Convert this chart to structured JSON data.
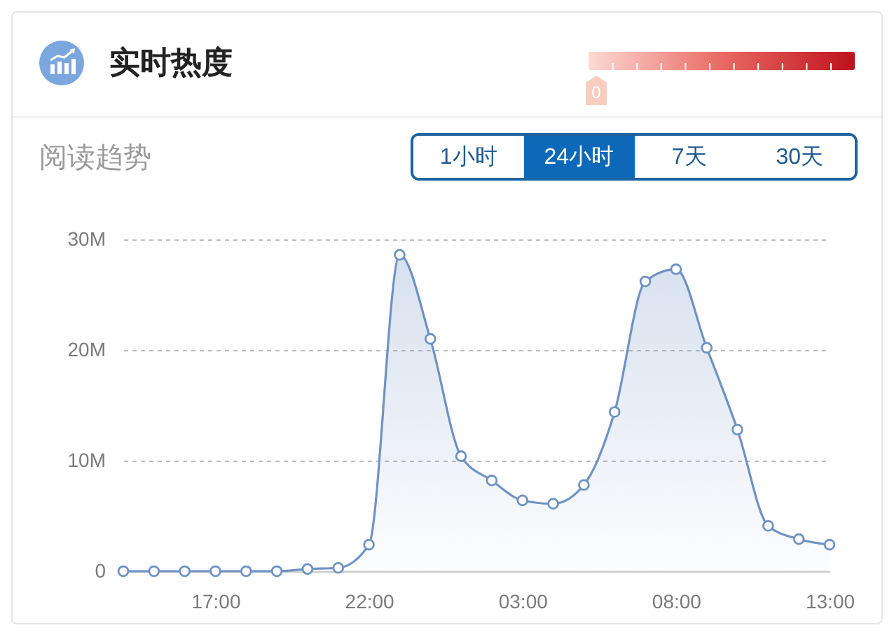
{
  "chart_data": [
    {
      "type": "other",
      "title": "实时热度",
      "annotations": [
        "0"
      ]
    },
    {
      "type": "area",
      "title": "阅读趋势",
      "annotations": [
        "1小时",
        "24小时",
        "7天",
        "30天"
      ],
      "categories": [
        null,
        null,
        null,
        "17:00",
        null,
        null,
        null,
        null,
        "22:00",
        null,
        null,
        null,
        null,
        "03:00",
        null,
        null,
        null,
        null,
        "08:00",
        null,
        null,
        null,
        null,
        "13:00"
      ],
      "series": [
        {
          "color": "#6f92c4",
          "values": [
            0,
            0,
            0,
            0,
            0,
            0,
            0.2,
            0.3,
            2.4,
            28.6,
            21.0,
            10.4,
            8.2,
            6.4,
            6.1,
            7.8,
            14.4,
            26.2,
            27.3,
            20.2,
            12.8,
            4.1,
            2.9,
            2.4
          ]
        }
      ],
      "ylim": [
        0,
        30
      ],
      "yticks": [
        0,
        {
          "value": 10,
          "label": "10M"
        },
        {
          "value": 20,
          "label": "20M"
        },
        {
          "value": 30,
          "label": "30M"
        }
      ],
      "grid": "y",
      "marker": "circle"
    }
  ]
}
